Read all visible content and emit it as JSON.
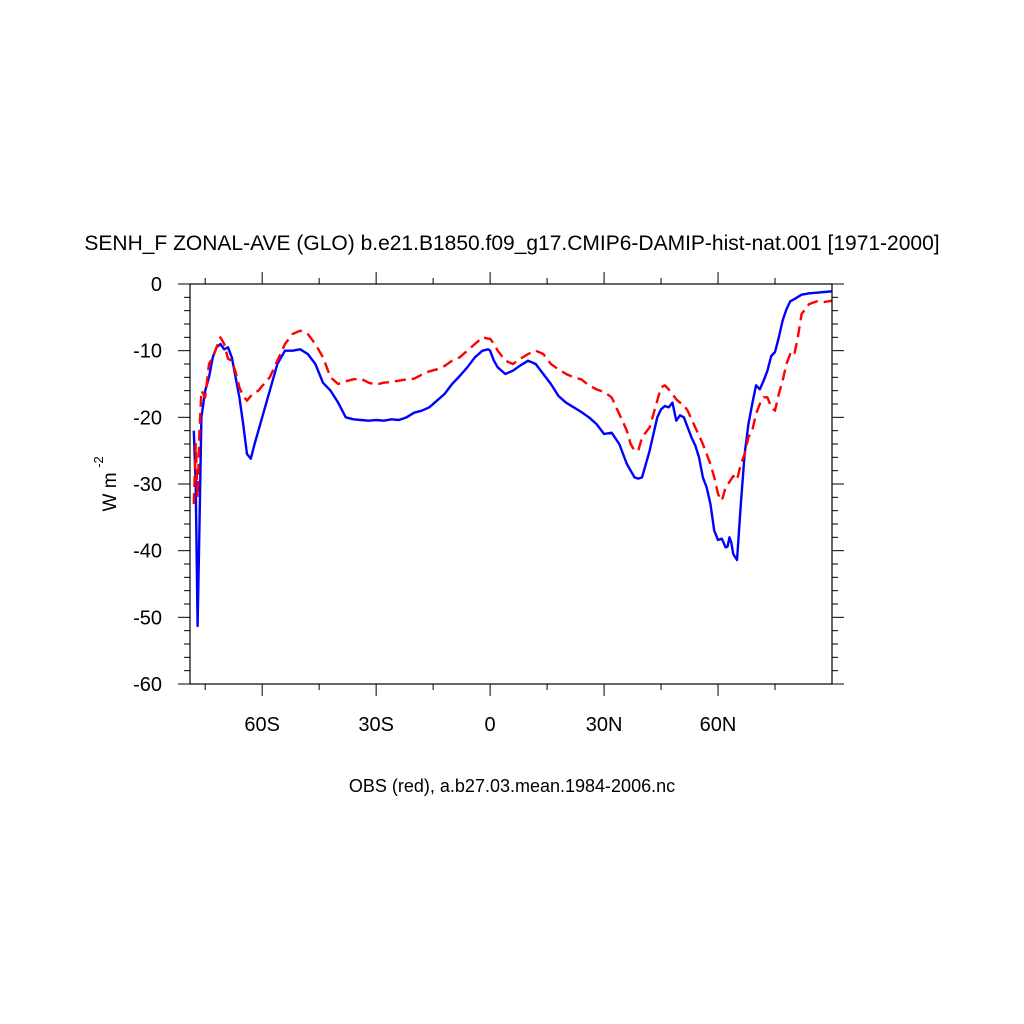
{
  "chart_data": {
    "type": "line",
    "title": "SENH_F ZONAL-AVE (GLO) b.e21.B1850.f09_g17.CMIP6-DAMIP-hist-nat.001 [1971-2000]",
    "xlabel": "",
    "ylabel_main": "W m",
    "ylabel_sup": "-2",
    "footer": "OBS (red), a.b27.03.mean.1984-2006.nc",
    "xlim": [
      -79,
      90
    ],
    "ylim": [
      -60,
      0
    ],
    "x_ticks": [
      {
        "value": -60,
        "label": "60S"
      },
      {
        "value": -30,
        "label": "30S"
      },
      {
        "value": 0,
        "label": "0"
      },
      {
        "value": 30,
        "label": "30N"
      },
      {
        "value": 60,
        "label": "60N"
      }
    ],
    "y_ticks": [
      {
        "value": 0,
        "label": "0"
      },
      {
        "value": -10,
        "label": "-10"
      },
      {
        "value": -20,
        "label": "-20"
      },
      {
        "value": -30,
        "label": "-30"
      },
      {
        "value": -40,
        "label": "-40"
      },
      {
        "value": -50,
        "label": "-50"
      },
      {
        "value": -60,
        "label": "-60"
      }
    ],
    "grid": false,
    "series": [
      {
        "color": "#0000ff",
        "dash": "solid",
        "x": [
          -78,
          -77.5,
          -77,
          -76.5,
          -76,
          -75,
          -74,
          -73,
          -72,
          -71,
          -70,
          -69,
          -68,
          -67,
          -66,
          -65,
          -64,
          -63,
          -62,
          -61,
          -60,
          -58,
          -56,
          -54,
          -52,
          -50,
          -48,
          -46,
          -44,
          -42,
          -40,
          -38,
          -36,
          -34,
          -32,
          -30,
          -28,
          -26,
          -24,
          -22,
          -20,
          -18,
          -16,
          -14,
          -12,
          -10,
          -8,
          -6,
          -4,
          -2,
          -0.5,
          0,
          1,
          2,
          4,
          6,
          8,
          10,
          12,
          14,
          16,
          18,
          20,
          22,
          24,
          26,
          28,
          30,
          32,
          34,
          36,
          38,
          39,
          40,
          42,
          44,
          45,
          46,
          47,
          48,
          49,
          50,
          51,
          52,
          53,
          54,
          55,
          56,
          57,
          58,
          59,
          60,
          61,
          62,
          62.5,
          63,
          63.5,
          64,
          65,
          66,
          67,
          68,
          69,
          70,
          71,
          72,
          73,
          74,
          75,
          76,
          77,
          78,
          79,
          80,
          82,
          84,
          86,
          88,
          90
        ],
        "y": [
          -22,
          -30,
          -51.3,
          -36,
          -20,
          -16,
          -14,
          -11,
          -9.5,
          -9,
          -9.8,
          -9.5,
          -11,
          -14,
          -17,
          -21,
          -25.5,
          -26.2,
          -24,
          -22,
          -20,
          -16,
          -12,
          -10,
          -10,
          -9.8,
          -10.5,
          -12,
          -14.8,
          -16,
          -17.8,
          -20,
          -20.3,
          -20.4,
          -20.5,
          -20.4,
          -20.5,
          -20.3,
          -20.4,
          -20,
          -19.3,
          -19,
          -18.5,
          -17.5,
          -16.5,
          -15,
          -13.8,
          -12.5,
          -11,
          -10,
          -9.8,
          -10,
          -11.5,
          -12.5,
          -13.5,
          -13,
          -12.2,
          -11.5,
          -12,
          -13.5,
          -15,
          -16.8,
          -17.8,
          -18.5,
          -19.2,
          -20,
          -21,
          -22.5,
          -22.3,
          -24,
          -27,
          -29,
          -29.2,
          -29,
          -25,
          -20,
          -18.8,
          -18.3,
          -18.5,
          -17.8,
          -20.5,
          -19.7,
          -20,
          -21.5,
          -23,
          -24.2,
          -26,
          -29,
          -30.5,
          -33,
          -37,
          -38.4,
          -38.2,
          -39.5,
          -39.4,
          -38,
          -38.8,
          -40.5,
          -41.4,
          -33,
          -25.5,
          -21,
          -18,
          -15.2,
          -15.8,
          -14.5,
          -13,
          -10.8,
          -10.2,
          -8,
          -5.5,
          -3.8,
          -2.6,
          -2.3,
          -1.6,
          -1.4,
          -1.3,
          -1.2,
          -1.1
        ]
      },
      {
        "color": "#ff0000",
        "dash": "dashed",
        "x": [
          -78,
          -77.5,
          -77,
          -76.5,
          -76,
          -75,
          -74,
          -73,
          -72,
          -71,
          -70,
          -69,
          -68,
          -67,
          -66,
          -65,
          -64,
          -63,
          -62,
          -61,
          -60,
          -58,
          -56,
          -54,
          -52,
          -50,
          -48,
          -46,
          -44,
          -42,
          -40,
          -38,
          -36,
          -34,
          -32,
          -30,
          -28,
          -26,
          -24,
          -22,
          -20,
          -18,
          -16,
          -14,
          -12,
          -10,
          -8,
          -6,
          -4,
          -2,
          -0.5,
          0,
          1,
          2,
          4,
          6,
          8,
          10,
          12,
          14,
          16,
          18,
          20,
          22,
          24,
          26,
          28,
          30,
          32,
          34,
          36,
          37,
          38,
          39,
          40,
          42,
          44,
          45,
          46,
          47,
          48,
          49,
          50,
          51,
          52,
          54,
          56,
          58,
          59,
          60,
          61,
          62,
          63,
          64,
          65,
          66,
          67,
          68,
          69,
          70,
          71,
          72,
          73,
          74,
          75,
          76,
          77,
          78,
          79,
          80,
          81,
          82,
          84,
          86,
          88,
          90
        ],
        "y": [
          -33,
          -24,
          -32,
          -22,
          -16,
          -17,
          -12,
          -11,
          -9.5,
          -8,
          -9,
          -11.2,
          -11.5,
          -13.2,
          -15.5,
          -16.8,
          -17.5,
          -16.8,
          -16.3,
          -16,
          -15.3,
          -14,
          -11.5,
          -9,
          -7.5,
          -7,
          -7.5,
          -9,
          -11,
          -14,
          -15,
          -14.6,
          -14.3,
          -14.2,
          -14.8,
          -15.1,
          -14.8,
          -14.7,
          -14.5,
          -14.3,
          -14.2,
          -13.6,
          -13.1,
          -12.8,
          -12.3,
          -11.5,
          -11,
          -10,
          -9,
          -8,
          -8.2,
          -8.2,
          -9,
          -10,
          -11.5,
          -12,
          -11.2,
          -10.5,
          -10,
          -10.5,
          -12,
          -12.8,
          -13.5,
          -14,
          -14.3,
          -15.2,
          -15.8,
          -16.2,
          -17,
          -19.5,
          -22,
          -24,
          -25,
          -25,
          -23,
          -21.5,
          -17.5,
          -15.5,
          -15.2,
          -15.8,
          -16.5,
          -17.3,
          -17.8,
          -18.2,
          -19,
          -21.5,
          -24,
          -27,
          -29,
          -31.5,
          -32.5,
          -30.5,
          -29.7,
          -28.8,
          -29.4,
          -27,
          -25.5,
          -23,
          -22,
          -19.5,
          -18,
          -17,
          -17,
          -18.5,
          -19,
          -16.5,
          -14.5,
          -12,
          -10.5,
          -10.8,
          -8,
          -4.5,
          -3,
          -2.6,
          -2.7,
          -2.5
        ]
      }
    ]
  }
}
